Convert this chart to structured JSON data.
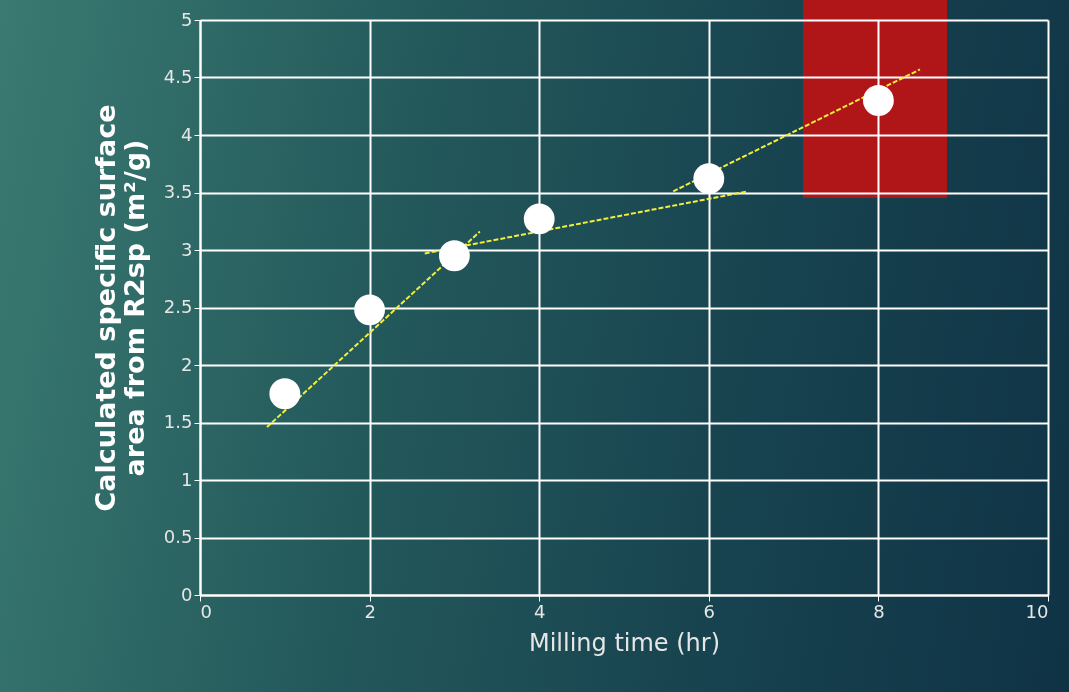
{
  "chart_data": {
    "type": "scatter",
    "xlabel": "Milling time (hr)",
    "ylabel": "Calculated specific surface\narea from R2sp (m²/g)",
    "xlim": [
      0,
      10
    ],
    "xticks": [
      0,
      2,
      4,
      6,
      8,
      10
    ],
    "ylim": [
      0,
      5
    ],
    "yticks": [
      0,
      0.5,
      1,
      1.5,
      2,
      2.5,
      3,
      3.5,
      4,
      4.5,
      5
    ],
    "grid": true,
    "series": [
      {
        "marker": "circle",
        "color": "#ffffff",
        "x": [
          1,
          2,
          3,
          4,
          6,
          8
        ],
        "values": [
          1.75,
          2.48,
          2.95,
          3.27,
          3.62,
          4.3
        ]
      },
      {
        "type": "line",
        "line_style": "dashed",
        "color": "#f2ee3a",
        "x": [
          0.79,
          3.3
        ],
        "values": [
          1.46,
          3.16
        ]
      },
      {
        "type": "line",
        "line_style": "dashed",
        "color": "#f2ee3a",
        "x": [
          2.65,
          6.46
        ],
        "values": [
          2.97,
          3.51
        ]
      },
      {
        "type": "line",
        "line_style": "dashed",
        "color": "#f2ee3a",
        "x": [
          5.58,
          8.49
        ],
        "values": [
          3.51,
          4.57
        ]
      }
    ]
  }
}
